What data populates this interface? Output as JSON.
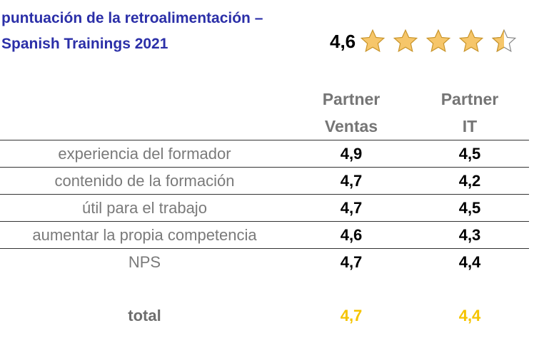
{
  "title": {
    "line1": "puntuación de la retroalimentación –",
    "line2": "Spanish Trainings 2021"
  },
  "rating": {
    "value": "4,6",
    "stars_filled": 4,
    "stars_half": 1,
    "stars_total": 5,
    "star_color": "#f6c66a"
  },
  "columns": [
    {
      "line1": "Partner",
      "line2": "Ventas"
    },
    {
      "line1": "Partner",
      "line2": "IT"
    }
  ],
  "rows": [
    {
      "label": "experiencia del formador",
      "ventas": "4,9",
      "it": "4,5"
    },
    {
      "label": "contenido de la formación",
      "ventas": "4,7",
      "it": "4,2"
    },
    {
      "label": "útil para el trabajo",
      "ventas": "4,7",
      "it": "4,5"
    },
    {
      "label": "aumentar la propia competencia",
      "ventas": "4,6",
      "it": "4,3"
    },
    {
      "label": "NPS",
      "ventas": "4,7",
      "it": "4,4"
    }
  ],
  "total": {
    "label": "total",
    "ventas": "4,7",
    "it": "4,4",
    "color": "#f5c400"
  }
}
